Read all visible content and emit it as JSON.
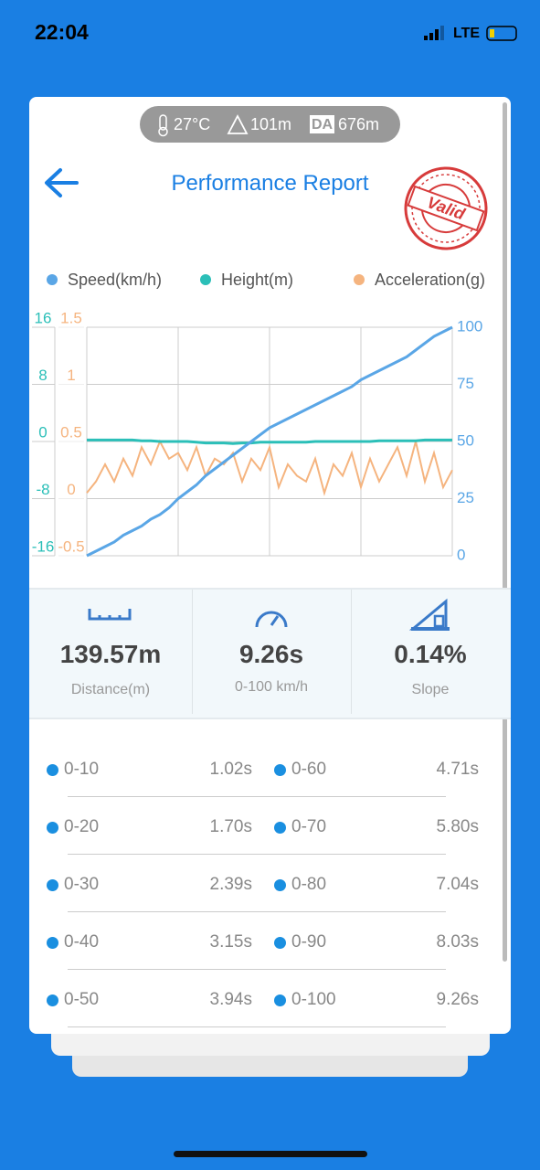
{
  "status_bar": {
    "time": "22:04",
    "network": "LTE"
  },
  "conditions": {
    "temperature": "27°C",
    "altitude": "101m",
    "da_badge": "DA",
    "density_altitude": "676m"
  },
  "header": {
    "title": "Performance Report",
    "stamp": "Valid"
  },
  "chart_data": {
    "type": "line",
    "series": [
      {
        "name": "Speed(km/h)",
        "color": "#5aa6e6",
        "axis": "y2",
        "values": [
          0,
          2,
          4,
          6,
          9,
          11,
          13,
          16,
          18,
          21,
          25,
          28,
          31,
          35,
          38,
          41,
          44,
          47,
          50,
          53,
          56,
          58,
          60,
          62,
          64,
          66,
          68,
          70,
          72,
          74,
          77,
          79,
          81,
          83,
          85,
          87,
          90,
          93,
          96,
          98,
          100
        ]
      },
      {
        "name": "Height(m)",
        "color": "#2bbfb8",
        "axis": "y",
        "values": [
          0.2,
          0.2,
          0.2,
          0.2,
          0.2,
          0.2,
          0.1,
          0.1,
          0,
          0,
          0,
          0,
          -0.1,
          -0.2,
          -0.2,
          -0.2,
          -0.3,
          -0.2,
          -0.2,
          -0.1,
          -0.1,
          -0.1,
          -0.1,
          -0.1,
          -0.1,
          0,
          0,
          0,
          0,
          0,
          0,
          0,
          0.1,
          0.1,
          0.1,
          0.1,
          0.1,
          0.2,
          0.2,
          0.2,
          0.2
        ]
      },
      {
        "name": "Acceleration(g)",
        "color": "#f5b47f",
        "axis": "y3",
        "values": [
          0.05,
          0.15,
          0.3,
          0.15,
          0.35,
          0.2,
          0.45,
          0.3,
          0.5,
          0.35,
          0.4,
          0.25,
          0.45,
          0.2,
          0.35,
          0.3,
          0.4,
          0.15,
          0.35,
          0.25,
          0.45,
          0.1,
          0.3,
          0.2,
          0.15,
          0.35,
          0.05,
          0.3,
          0.2,
          0.4,
          0.1,
          0.35,
          0.15,
          0.3,
          0.45,
          0.2,
          0.5,
          0.15,
          0.4,
          0.1,
          0.25
        ]
      }
    ],
    "ylim": [
      -16,
      16
    ],
    "yticks": [
      -16,
      -8,
      0,
      8,
      16
    ],
    "y3lim": [
      -0.5,
      1.5
    ],
    "y3ticks": [
      -0.5,
      0,
      0.5,
      1,
      1.5
    ],
    "y2lim": [
      0,
      100
    ],
    "y2ticks": [
      0,
      25,
      50,
      75,
      100
    ],
    "grid": true
  },
  "stats": [
    {
      "value": "139.57m",
      "label": "Distance(m)"
    },
    {
      "value": "9.26s",
      "label": "0-100 km/h"
    },
    {
      "value": "0.14%",
      "label": "Slope"
    }
  ],
  "splits": [
    [
      "0-10",
      "1.02s"
    ],
    [
      "0-20",
      "1.70s"
    ],
    [
      "0-30",
      "2.39s"
    ],
    [
      "0-40",
      "3.15s"
    ],
    [
      "0-50",
      "3.94s"
    ],
    [
      "0-60",
      "4.71s"
    ],
    [
      "0-70",
      "5.80s"
    ],
    [
      "0-80",
      "7.04s"
    ],
    [
      "0-90",
      "8.03s"
    ],
    [
      "0-100",
      "9.26s"
    ]
  ]
}
